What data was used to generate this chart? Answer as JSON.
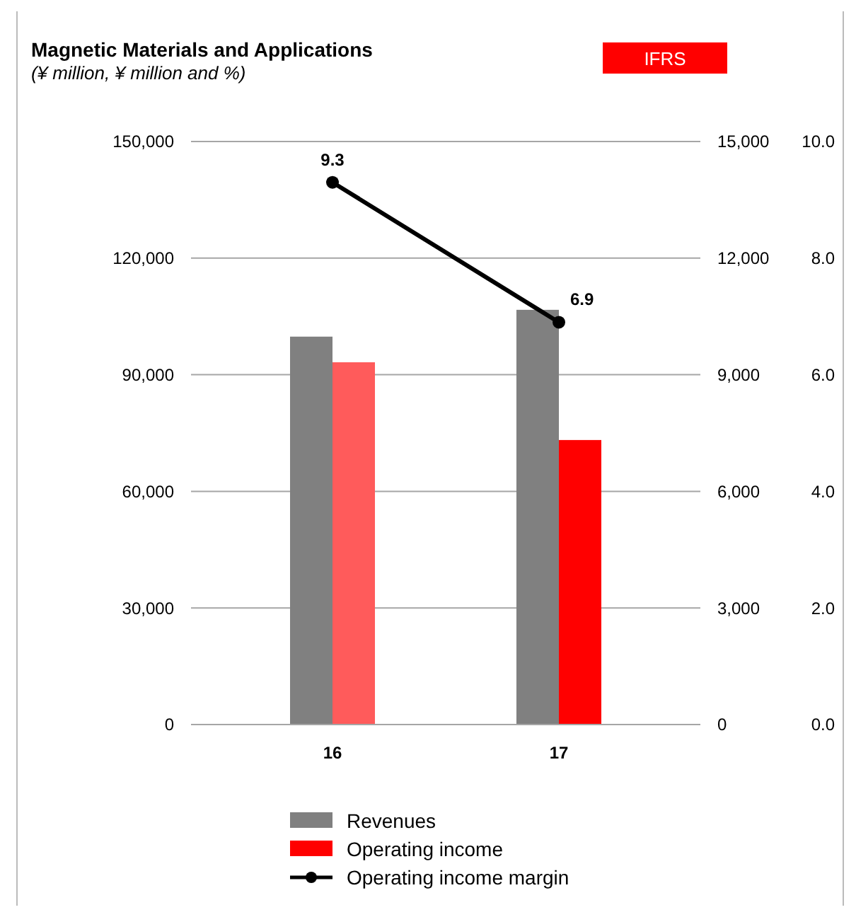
{
  "chart_data": {
    "type": "bar",
    "title": "Magnetic Materials and Applications",
    "subtitle": "(¥ million, ¥ million and %)",
    "annotations": [
      "IFRS"
    ],
    "categories": [
      "16",
      "17"
    ],
    "series": [
      {
        "name": "Revenues",
        "color": "#808080",
        "values": [
          99800,
          106700
        ]
      },
      {
        "name": "Operating income",
        "color": "#ff0000",
        "colors": [
          "#ff5b5b",
          "#ff0000"
        ],
        "axis": "y2",
        "values": [
          9320,
          7320
        ]
      },
      {
        "name": "Operating income margin",
        "type": "line",
        "color": "#000000",
        "axis": "y3",
        "marker": "circle",
        "values": [
          9.3,
          6.9
        ],
        "value_labels": [
          "9.3",
          "6.9"
        ]
      }
    ],
    "ylim": [
      0,
      150000
    ],
    "yticks": [
      {
        "value": 0,
        "label": "0"
      },
      {
        "value": 30000,
        "label": "30,000"
      },
      {
        "value": 60000,
        "label": "60,000"
      },
      {
        "value": 90000,
        "label": "90,000"
      },
      {
        "value": 120000,
        "label": "120,000"
      },
      {
        "value": 150000,
        "label": "150,000"
      }
    ],
    "y2lim": [
      0,
      15000
    ],
    "y2ticks": [
      {
        "value": 0,
        "label": "0"
      },
      {
        "value": 3000,
        "label": "3,000"
      },
      {
        "value": 6000,
        "label": "6,000"
      },
      {
        "value": 9000,
        "label": "9,000"
      },
      {
        "value": 12000,
        "label": "12,000"
      },
      {
        "value": 15000,
        "label": "15,000"
      }
    ],
    "y3lim": [
      0,
      10
    ],
    "y3ticks": [
      {
        "value": 0,
        "label": "0.0"
      },
      {
        "value": 2,
        "label": "2.0"
      },
      {
        "value": 4,
        "label": "4.0"
      },
      {
        "value": 6,
        "label": "6.0"
      },
      {
        "value": 8,
        "label": "8.0"
      },
      {
        "value": 10,
        "label": "10.0"
      }
    ],
    "grid": "y",
    "legend": "bottom"
  }
}
